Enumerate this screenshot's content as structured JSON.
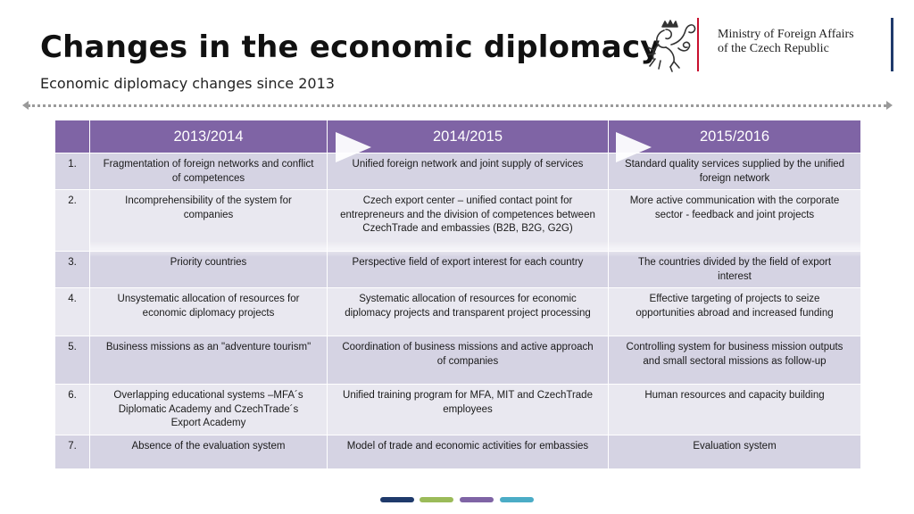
{
  "slide": {
    "title": "Changes in the economic diplomacy",
    "subtitle": "Economic diplomacy changes since 2013"
  },
  "branding": {
    "ministry_line1": "Ministry of Foreign Affairs",
    "ministry_line2": "of the Czech Republic",
    "logo_icon": "czech-lion-icon",
    "accent_red": "#c8102e",
    "accent_blue": "#1f3a6b"
  },
  "table": {
    "header_color": "#7f64a5",
    "columns": [
      "",
      "2013/2014",
      "2014/2015",
      "2015/2016"
    ],
    "rows": [
      {
        "num": "1.",
        "c1": "Fragmentation of foreign networks and conflict of competences",
        "c2": "Unified foreign network and joint supply of services",
        "c3": "Standard quality services supplied by the unified foreign network"
      },
      {
        "num": "2.",
        "c1": "Incomprehensibility of the system for companies",
        "c2": "Czech export center – unified contact point for entrepreneurs and the division of competences between CzechTrade and embassies (B2B, B2G, G2G)",
        "c3": "More active communication with the corporate sector - feedback and joint projects"
      },
      {
        "num": "3.",
        "c1": "Priority countries",
        "c2": "Perspective field of export interest for each country",
        "c3": "The countries divided by the field of export interest"
      },
      {
        "num": "4.",
        "c1": "Unsystematic allocation of resources for economic diplomacy projects",
        "c2": "Systematic allocation of resources for economic diplomacy projects and transparent project processing",
        "c3": "Effective targeting of projects to seize opportunities abroad and increased funding"
      },
      {
        "num": "5.",
        "c1": "Business missions as an \"adventure tourism\"",
        "c2": "Coordination of business missions and active approach of companies",
        "c3": "Controlling system for business mission outputs and small sectoral missions as follow-up"
      },
      {
        "num": "6.",
        "c1": "Overlapping educational systems –MFA´s Diplomatic Academy  and CzechTrade´s Export Academy",
        "c2": "Unified training  program for MFA, MIT and CzechTrade employees",
        "c3": "Human resources and capacity building"
      },
      {
        "num": "7.",
        "c1": "Absence of the evaluation system",
        "c2": "Model of trade and economic activities for embassies",
        "c3": "Evaluation system"
      }
    ]
  },
  "footer_dot_colors": [
    "#1f3a6b",
    "#9bbb59",
    "#7f64a5",
    "#4bacc6"
  ]
}
